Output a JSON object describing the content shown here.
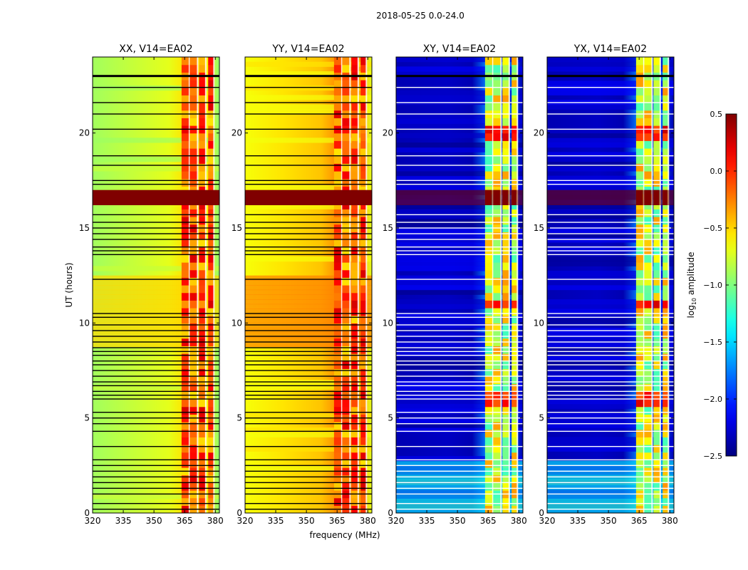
{
  "figure": {
    "title": "2018-05-25 0.0-24.0"
  },
  "chart_data": {
    "type": "heatmap",
    "xlabel": "frequency (MHz)",
    "ylabel": "UT (hours)",
    "xlim": [
      320,
      382
    ],
    "ylim": [
      0,
      24
    ],
    "x_ticks": [
      320,
      335,
      350,
      365,
      380
    ],
    "y_ticks": [
      0,
      5,
      10,
      15,
      20
    ],
    "panels": [
      {
        "key": "xx",
        "title": "XX, V14=EA02",
        "mode": "parallel",
        "level": -0.85
      },
      {
        "key": "yy",
        "title": "YY, V14=EA02",
        "mode": "parallel",
        "level": -0.6
      },
      {
        "key": "xy",
        "title": "XY, V14=EA02",
        "mode": "cross",
        "level": -2.35
      },
      {
        "key": "yx",
        "title": "YX, V14=EA02",
        "mode": "cross",
        "level": -2.35
      }
    ],
    "colorbar": {
      "label_base": "log",
      "label_sub": "10",
      "label_rest": " amplitude",
      "min": -2.5,
      "max": 0.5,
      "ticks": [
        0.5,
        0.0,
        -0.5,
        -1.0,
        -1.5,
        -2.0,
        -2.5
      ],
      "tick_labels": [
        "0.5",
        "0.0",
        "−0.5",
        "−1.0",
        "−1.5",
        "−2.0",
        "−2.5"
      ],
      "colormap": "jet"
    },
    "rfi_freq_bands_mhz": [
      [
        363.5,
        367.5
      ],
      [
        367.5,
        371.5
      ],
      [
        372.0,
        375.5
      ],
      [
        376.5,
        379.5
      ]
    ],
    "flagged_ut_hours": [
      23.0,
      22.4,
      21.6,
      21.0,
      20.2,
      18.8,
      18.3,
      17.5,
      17.3,
      15.7,
      15.3,
      15.0,
      14.7,
      14.4,
      14.0,
      13.8,
      13.6,
      12.3,
      10.5,
      10.3,
      9.9,
      9.6,
      9.3,
      9.0,
      8.7,
      8.5,
      8.3,
      8.0,
      7.8,
      7.5,
      7.2,
      6.9,
      6.7,
      6.4,
      6.2,
      6.0,
      5.3,
      5.0,
      4.7,
      4.3,
      3.5,
      2.8,
      2.5,
      2.2,
      1.9,
      1.6,
      1.3,
      1.0,
      0.5,
      0.2
    ],
    "thick_flag_ut_hours": [
      23.0
    ],
    "strong_rfi_ut_range": [
      16.2,
      17.0
    ]
  }
}
